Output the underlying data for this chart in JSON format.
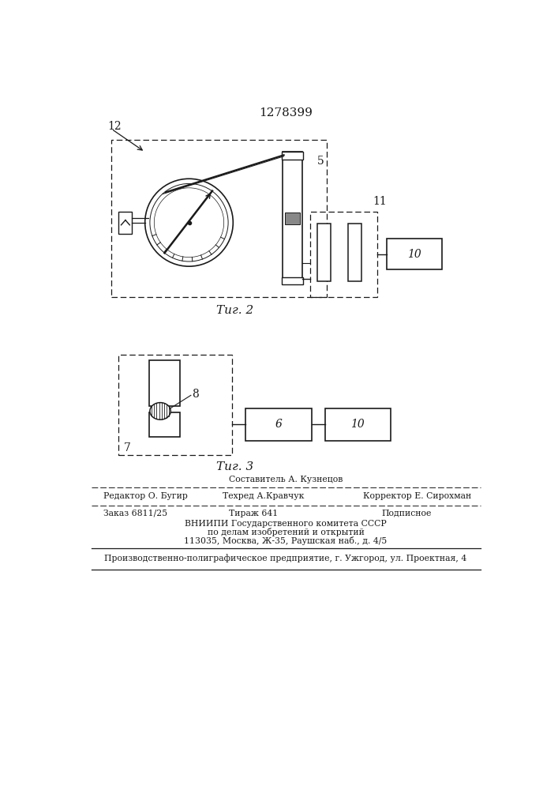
{
  "title": "1278399",
  "fig2_label": "Τиг. 2",
  "fig3_label": "Τиг. 3",
  "footer": {
    "line1_center_top": "Составитель А. Кузнецов",
    "line1_left": "Редактор О. Бугир",
    "line1_center": "Техред А.Кравчук",
    "line1_right": "Корректор Е. Сирохман",
    "line2_left": "Заказ 6811/25",
    "line2_center": "Тираж 641",
    "line2_right": "Подписное",
    "line3": "ВНИИПИ Государственного комитета СССР",
    "line4": "по делам изобретений и открытий",
    "line5": "113035, Москва, Ж-35, Раушская наб., д. 4/5",
    "line6": "Производственно-полиграфическое предприятие, г. Ужгород, ул. Проектная, 4"
  },
  "bg_color": "#ffffff",
  "line_color": "#1a1a1a"
}
